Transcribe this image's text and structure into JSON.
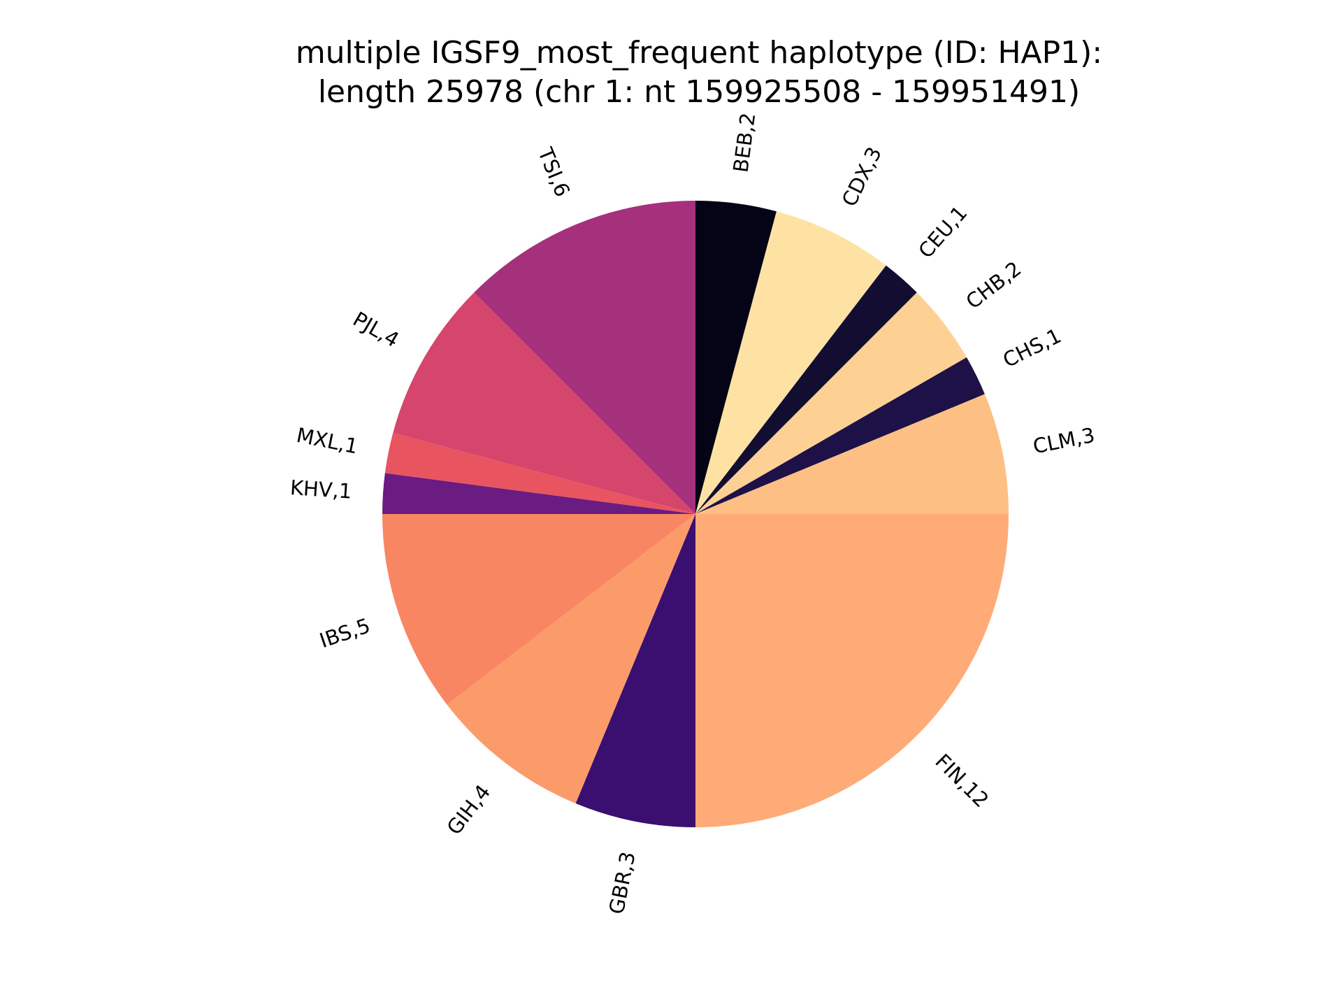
{
  "chart_data": {
    "type": "pie",
    "title_lines": [
      "multiple IGSF9_most_frequent haplotype (ID: HAP1):",
      "length 25978 (chr 1: nt 159925508 - 159951491)"
    ],
    "slices": [
      {
        "label": "BEB,2",
        "category": "BEB",
        "value": 2,
        "color": "#050417"
      },
      {
        "label": "CDX,3",
        "category": "CDX",
        "value": 3,
        "color": "#fde2a3"
      },
      {
        "label": "CEU,1",
        "category": "CEU",
        "value": 1,
        "color": "#120d31"
      },
      {
        "label": "CHB,2",
        "category": "CHB",
        "value": 2,
        "color": "#fdd193"
      },
      {
        "label": "CHS,1",
        "category": "CHS",
        "value": 1,
        "color": "#1d1147"
      },
      {
        "label": "CLM,3",
        "category": "CLM",
        "value": 3,
        "color": "#febf84"
      },
      {
        "label": "FIN,12",
        "category": "FIN",
        "value": 12,
        "color": "#feab77"
      },
      {
        "label": "GBR,3",
        "category": "GBR",
        "value": 3,
        "color": "#3b0f70"
      },
      {
        "label": "GIH,4",
        "category": "GIH",
        "value": 4,
        "color": "#fc9b6a"
      },
      {
        "label": "IBS,5",
        "category": "IBS",
        "value": 5,
        "color": "#f98663"
      },
      {
        "label": "KHV,1",
        "category": "KHV",
        "value": 1,
        "color": "#6a1c80"
      },
      {
        "label": "MXL,1",
        "category": "MXL",
        "value": 1,
        "color": "#e95461"
      },
      {
        "label": "PJL,4",
        "category": "PJL",
        "value": 4,
        "color": "#d6456c"
      },
      {
        "label": "TSI,6",
        "category": "TSI",
        "value": 6,
        "color": "#a5317c"
      }
    ],
    "start_angle_deg": 90,
    "direction": "clockwise"
  }
}
